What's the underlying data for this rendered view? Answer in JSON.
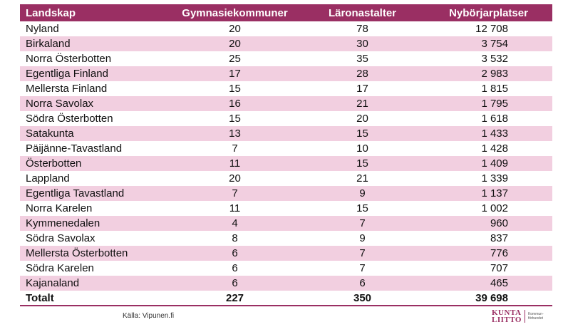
{
  "table": {
    "headers": [
      "Landskap",
      "Gymnasiekommuner",
      "Läronastalter",
      "Nybörjarplatser"
    ],
    "rows": [
      [
        "Nyland",
        "20",
        "78",
        "12 708"
      ],
      [
        "Birkaland",
        "20",
        "30",
        "3 754"
      ],
      [
        "Norra Österbotten",
        "25",
        "35",
        "3 532"
      ],
      [
        "Egentliga Finland",
        "17",
        "28",
        "2 983"
      ],
      [
        "Mellersta Finland",
        "15",
        "17",
        "1 815"
      ],
      [
        "Norra Savolax",
        "16",
        "21",
        "1 795"
      ],
      [
        "Södra Österbotten",
        "15",
        "20",
        "1 618"
      ],
      [
        "Satakunta",
        "13",
        "15",
        "1 433"
      ],
      [
        "Päijänne-Tavastland",
        "7",
        "10",
        "1 428"
      ],
      [
        "Österbotten",
        "11",
        "15",
        "1 409"
      ],
      [
        "Lappland",
        "20",
        "21",
        "1 339"
      ],
      [
        "Egentliga Tavastland",
        "7",
        "9",
        "1 137"
      ],
      [
        "Norra Karelen",
        "11",
        "15",
        "1 002"
      ],
      [
        "Kymmenedalen",
        "4",
        "7",
        "960"
      ],
      [
        "Södra Savolax",
        "8",
        "9",
        "837"
      ],
      [
        "Mellersta Österbotten",
        "6",
        "7",
        "776"
      ],
      [
        "Södra Karelen",
        "6",
        "7",
        "707"
      ],
      [
        "Kajanaland",
        "6",
        "6",
        "465"
      ]
    ],
    "total": [
      "Totalt",
      "227",
      "350",
      "39 698"
    ]
  },
  "footer": {
    "source": "Källa: Vipunen.fi",
    "logo_line1": "KUNTA",
    "logo_line2": "LIITTO",
    "logo_sub1": "Kommun-",
    "logo_sub2": "förbundet"
  },
  "colors": {
    "header_bg": "#9a2f63",
    "stripe": "#f2cfe0"
  }
}
